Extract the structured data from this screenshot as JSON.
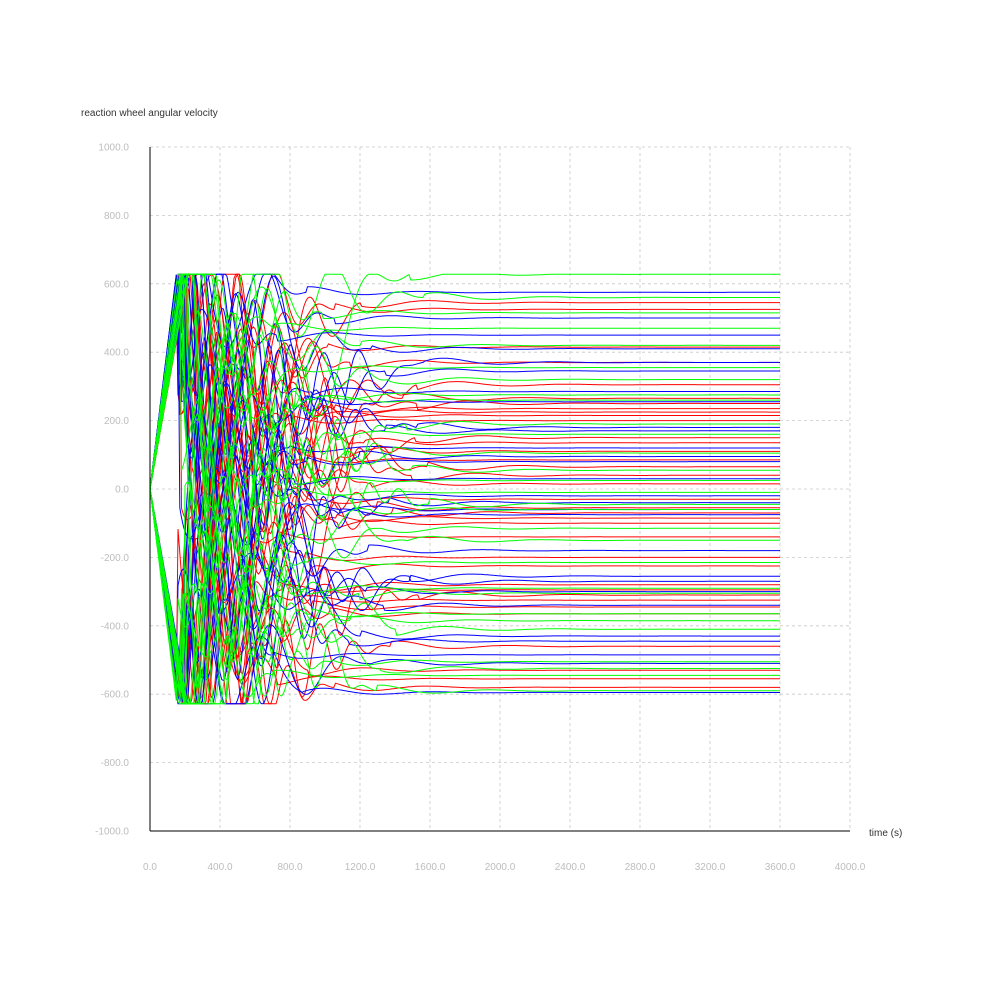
{
  "chart_data": {
    "type": "line",
    "title": "",
    "ylabel": "reaction wheel angular velocity",
    "xlabel": "time (s)",
    "xlim": [
      0,
      4000
    ],
    "ylim": [
      -1000,
      1000
    ],
    "grid": true,
    "legend": "none",
    "x_ticks": [
      "0.0",
      "400.0",
      "800.0",
      "1200.0",
      "1600.0",
      "2000.0",
      "2400.0",
      "2800.0",
      "3200.0",
      "3600.0",
      "4000.0"
    ],
    "y_ticks": [
      "1000.0",
      "800.0",
      "600.0",
      "400.0",
      "200.0",
      "0.0",
      "-200.0",
      "-400.0",
      "-600.0",
      "-800.0",
      "-1000.0"
    ],
    "saturation_limit": 628,
    "end_time": 3600,
    "series_colors": [
      "#ff0000",
      "#0000ff",
      "#00ff00"
    ],
    "series_final_values": {
      "red": [
        545,
        525,
        415,
        370,
        305,
        265,
        250,
        235,
        225,
        215,
        200,
        150,
        135,
        110,
        85,
        65,
        40,
        15,
        -30,
        -55,
        -70,
        -85,
        -100,
        -140,
        -200,
        -225,
        -280,
        -295,
        -310,
        -325,
        -345,
        -365,
        -460,
        -530,
        -555,
        -580
      ],
      "blue": [
        575,
        500,
        450,
        410,
        370,
        345,
        285,
        255,
        180,
        170,
        120,
        95,
        80,
        30,
        -20,
        -40,
        -60,
        -75,
        -180,
        -255,
        -270,
        -300,
        -340,
        -430,
        -445,
        -485,
        -510,
        -595
      ],
      "green": [
        628,
        560,
        515,
        470,
        420,
        355,
        320,
        275,
        260,
        190,
        160,
        105,
        55,
        25,
        -10,
        -45,
        -60,
        -115,
        -150,
        -215,
        -290,
        -305,
        -365,
        -385,
        -410,
        -505,
        -525,
        -545,
        -590
      ]
    }
  }
}
